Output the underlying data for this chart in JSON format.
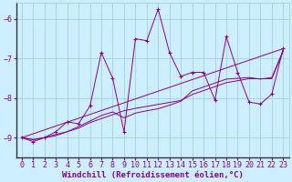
{
  "title": "",
  "xlabel": "Windchill (Refroidissement éolien,°C)",
  "background_color": "#cceeff",
  "line_color": "#880088",
  "grid_color": "#99cccc",
  "axis_color": "#444444",
  "xlim": [
    -0.5,
    23.5
  ],
  "ylim": [
    -9.5,
    -5.6
  ],
  "yticks": [
    -9,
    -8,
    -7,
    -6
  ],
  "xticks": [
    0,
    1,
    2,
    3,
    4,
    5,
    6,
    7,
    8,
    9,
    10,
    11,
    12,
    13,
    14,
    15,
    16,
    17,
    18,
    19,
    20,
    21,
    22,
    23
  ],
  "series1_x": [
    0,
    1,
    2,
    3,
    4,
    5,
    6,
    7,
    8,
    9,
    10,
    11,
    12,
    13,
    14,
    15,
    16,
    17,
    18,
    19,
    20,
    21,
    22,
    23
  ],
  "series1_y": [
    -9.0,
    -9.1,
    -9.0,
    -8.85,
    -8.6,
    -8.65,
    -8.2,
    -6.85,
    -7.5,
    -8.85,
    -6.5,
    -6.55,
    -5.75,
    -6.85,
    -7.45,
    -7.35,
    -7.35,
    -8.05,
    -6.45,
    -7.35,
    -8.1,
    -8.15,
    -7.9,
    -6.75
  ],
  "series2_x": [
    0,
    1,
    2,
    3,
    4,
    5,
    6,
    7,
    8,
    9,
    10,
    11,
    12,
    13,
    14,
    15,
    16,
    17,
    18,
    19,
    20,
    21,
    22,
    23
  ],
  "series2_y": [
    -9.0,
    -9.05,
    -9.0,
    -8.95,
    -8.85,
    -8.72,
    -8.58,
    -8.44,
    -8.35,
    -8.5,
    -8.38,
    -8.32,
    -8.27,
    -8.18,
    -8.08,
    -7.82,
    -7.72,
    -7.62,
    -7.52,
    -7.5,
    -7.48,
    -7.52,
    -7.48,
    -6.8
  ],
  "series3_x": [
    0,
    1,
    2,
    3,
    4,
    5,
    6,
    7,
    8,
    9,
    10,
    11,
    12,
    13,
    14,
    15,
    16,
    17,
    18,
    19,
    20,
    21,
    22,
    23
  ],
  "series3_y": [
    -9.0,
    -9.05,
    -9.0,
    -8.92,
    -8.85,
    -8.76,
    -8.62,
    -8.52,
    -8.42,
    -8.32,
    -8.26,
    -8.21,
    -8.16,
    -8.11,
    -8.06,
    -7.91,
    -7.81,
    -7.71,
    -7.61,
    -7.56,
    -7.51,
    -7.51,
    -7.51,
    -6.82
  ],
  "series4_x": [
    0,
    23
  ],
  "series4_y": [
    -9.0,
    -6.75
  ],
  "tickfont_size": 6,
  "labelfont_size": 6.5
}
